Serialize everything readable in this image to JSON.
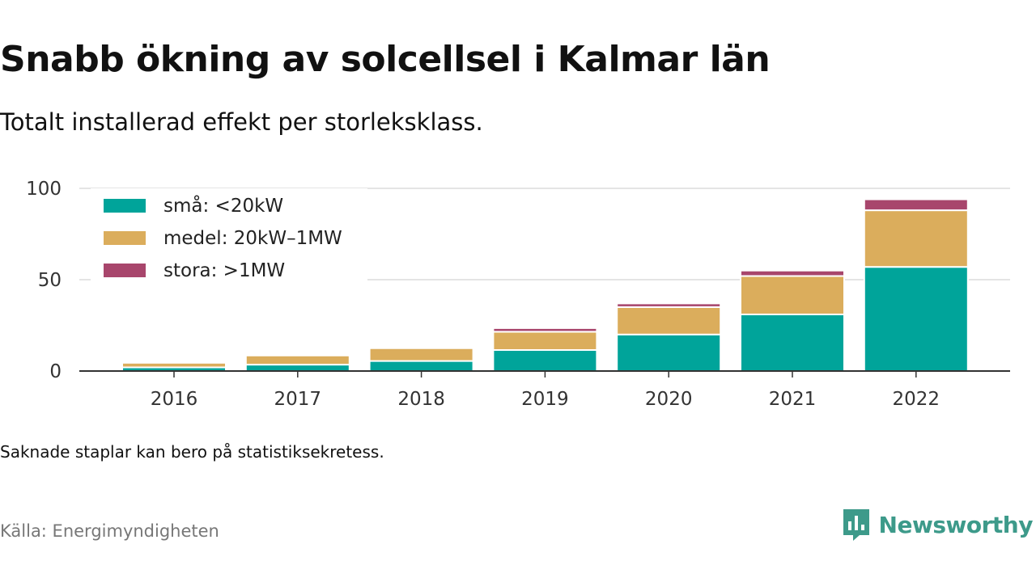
{
  "title": "Snabb ökning av solcellsel i Kalmar län",
  "subtitle": "Totalt installerad effekt per storleksklass.",
  "note": "Saknade staplar kan bero på statistiksekretess.",
  "source": "Källa: Energimyndigheten",
  "brand": {
    "name": "Newsworthy",
    "color": "#3d9a8a"
  },
  "chart_data": {
    "type": "bar",
    "stacked": true,
    "categories": [
      "2016",
      "2017",
      "2018",
      "2019",
      "2020",
      "2021",
      "2022"
    ],
    "series": [
      {
        "name": "små: <20kW",
        "color": "#00a49a",
        "values": [
          2,
          3.5,
          5.5,
          11.5,
          20,
          31,
          57
        ]
      },
      {
        "name": "medel: 20kW–1MW",
        "color": "#dbad5c",
        "values": [
          2.5,
          5,
          7,
          10,
          15,
          21,
          31
        ]
      },
      {
        "name": "stora: >1MW",
        "color": "#a8466c",
        "values": [
          0,
          0,
          0,
          2,
          2,
          3,
          6
        ]
      }
    ],
    "ylim": [
      0,
      100
    ],
    "yticks": [
      0,
      50,
      100
    ],
    "grid": true,
    "legend": "top-left"
  }
}
